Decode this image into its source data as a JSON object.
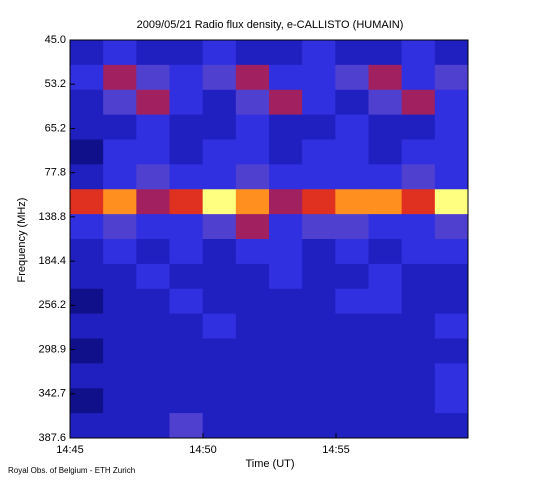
{
  "chart_data": {
    "type": "spectrogram",
    "title": "2009/05/21  Radio flux density, e-CALLISTO (HUMAIN)",
    "x_label": "Time (UT)",
    "y_label": "Frequency (MHz)",
    "footer": "Royal Obs. of Belgium - ETH Zurich",
    "xticks": [
      "14:45",
      "14:50",
      "14:55"
    ],
    "ylim": [
      387.6,
      45.0
    ],
    "yticks": [
      {
        "value": 45.0,
        "label": "45.0"
      },
      {
        "value": 53.2,
        "label": "53.2"
      },
      {
        "value": 65.2,
        "label": "65.2"
      },
      {
        "value": 77.8,
        "label": "77.8"
      },
      {
        "value": 138.8,
        "label": "138.8"
      },
      {
        "value": 184.4,
        "label": "184.4"
      },
      {
        "value": 256.2,
        "label": "256.2"
      },
      {
        "value": 298.9,
        "label": "298.9"
      },
      {
        "value": 342.7,
        "label": "342.7"
      },
      {
        "value": 387.6,
        "label": "387.6"
      }
    ],
    "colormap": [
      "#000020",
      "#10108a",
      "#2020c0",
      "#3030e0",
      "#5040d0",
      "#a02060",
      "#e03020",
      "#ff9020",
      "#ffff80",
      "#ffffff"
    ],
    "z": [
      [
        2,
        3,
        2,
        2,
        3,
        2,
        2,
        3,
        2,
        2,
        3,
        2
      ],
      [
        3,
        5,
        4,
        3,
        4,
        5,
        3,
        3,
        4,
        5,
        3,
        4
      ],
      [
        2,
        4,
        5,
        3,
        2,
        4,
        5,
        3,
        2,
        4,
        5,
        3
      ],
      [
        2,
        2,
        3,
        2,
        2,
        3,
        2,
        2,
        3,
        2,
        2,
        3
      ],
      [
        1,
        3,
        3,
        2,
        3,
        3,
        2,
        3,
        3,
        2,
        3,
        3
      ],
      [
        2,
        3,
        4,
        3,
        3,
        4,
        3,
        3,
        3,
        3,
        4,
        3
      ],
      [
        6,
        7,
        5,
        6,
        8,
        7,
        5,
        6,
        7,
        7,
        6,
        8
      ],
      [
        3,
        4,
        3,
        3,
        4,
        5,
        3,
        4,
        4,
        3,
        3,
        4
      ],
      [
        2,
        3,
        2,
        3,
        2,
        3,
        3,
        2,
        3,
        2,
        3,
        3
      ],
      [
        2,
        2,
        3,
        2,
        2,
        2,
        3,
        2,
        2,
        3,
        2,
        2
      ],
      [
        1,
        2,
        2,
        3,
        2,
        2,
        2,
        2,
        3,
        3,
        2,
        2
      ],
      [
        2,
        2,
        2,
        2,
        3,
        2,
        2,
        2,
        2,
        2,
        2,
        3
      ],
      [
        1,
        2,
        2,
        2,
        2,
        2,
        2,
        2,
        2,
        2,
        2,
        2
      ],
      [
        2,
        2,
        2,
        2,
        2,
        2,
        2,
        2,
        2,
        2,
        2,
        3
      ],
      [
        1,
        2,
        2,
        2,
        2,
        2,
        2,
        2,
        2,
        2,
        2,
        3
      ],
      [
        2,
        2,
        2,
        4,
        2,
        2,
        2,
        2,
        2,
        2,
        2,
        2
      ]
    ]
  }
}
